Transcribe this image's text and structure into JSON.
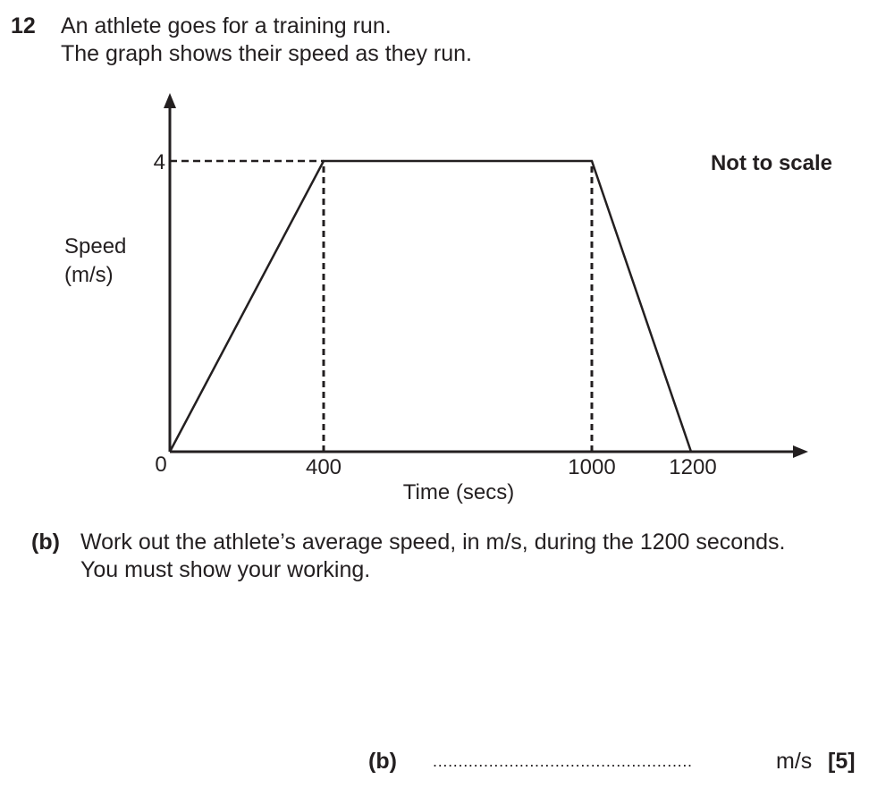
{
  "question": {
    "number": "12",
    "line1": "An athlete goes for a training run.",
    "line2": "The graph shows their speed as they run."
  },
  "graph": {
    "note": "Not to scale"
  },
  "chart_data": {
    "type": "line",
    "xlabel": "Time (secs)",
    "ylabel_line1": "Speed",
    "ylabel_line2": "(m/s)",
    "x_ticks": [
      "0",
      "400",
      "1000",
      "1200"
    ],
    "y_ticks": [
      "4"
    ],
    "series": [
      {
        "points": [
          {
            "x": 0,
            "y": 0
          },
          {
            "x": 400,
            "y": 4
          },
          {
            "x": 1000,
            "y": 4
          },
          {
            "x": 1200,
            "y": 0
          }
        ]
      }
    ],
    "guides": [
      {
        "type": "horizontal",
        "y": 4,
        "x_from": 0,
        "x_to": 400
      },
      {
        "type": "vertical",
        "x": 400,
        "y_from": 0,
        "y_to": 4
      },
      {
        "type": "vertical",
        "x": 1000,
        "y_from": 0,
        "y_to": 4
      }
    ],
    "scale_note": "Not to scale",
    "grid": false
  },
  "part_b": {
    "label": "(b)",
    "line1": "Work out the athlete’s average speed, in m/s, during the 1200 seconds.",
    "line2": "You must show your working."
  },
  "answer": {
    "label": "(b)",
    "dots": "...................................................",
    "unit": "m/s",
    "marks": "[5]"
  }
}
